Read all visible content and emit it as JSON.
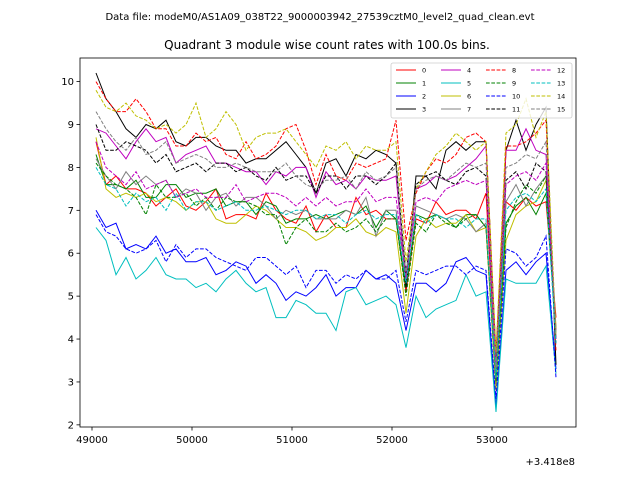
{
  "suptitle": "Data file: modeM0/AS1A09_038T22_9000003942_27539cztM0_level2_quad_clean.evt",
  "chart_data": {
    "type": "line",
    "title": "Quadrant 3 module wise count rates with 100.0s bins.",
    "xlabel": "",
    "ylabel": "",
    "x_offset_label": "+3.418e8",
    "xlim": [
      48880,
      53840
    ],
    "ylim": [
      1.95,
      10.55
    ],
    "xticks": [
      49000,
      50000,
      51000,
      52000,
      53000
    ],
    "xtick_labels": [
      "49000",
      "50000",
      "51000",
      "52000",
      "53000"
    ],
    "yticks": [
      2,
      3,
      4,
      5,
      6,
      7,
      8,
      9,
      10
    ],
    "ytick_labels": [
      "2",
      "3",
      "4",
      "5",
      "6",
      "7",
      "8",
      "9",
      "10"
    ],
    "grid": false,
    "legend_position": "top-right",
    "x": [
      49040,
      49140,
      49240,
      49340,
      49440,
      49540,
      49640,
      49740,
      49840,
      49940,
      50040,
      50140,
      50240,
      50340,
      50440,
      50540,
      50640,
      50740,
      50840,
      50940,
      51040,
      51140,
      51240,
      51340,
      51440,
      51540,
      51640,
      51740,
      51840,
      51940,
      52040,
      52140,
      52240,
      52340,
      52440,
      52540,
      52640,
      52740,
      52840,
      52940,
      53040,
      53140,
      53240,
      53340,
      53440,
      53540,
      53640
    ],
    "series": [
      {
        "name": "0",
        "color": "#ff0000",
        "dash": false,
        "values": [
          8.6,
          7.6,
          7.8,
          7.5,
          7.5,
          7.4,
          7.1,
          7.3,
          7.5,
          7.1,
          7.0,
          7.2,
          7.5,
          6.8,
          6.9,
          6.9,
          6.8,
          7.4,
          7.0,
          6.8,
          6.7,
          7.1,
          6.5,
          6.9,
          6.6,
          6.6,
          7.3,
          6.9,
          7.0,
          6.8,
          6.8,
          5.1,
          6.8,
          6.7,
          7.2,
          6.9,
          7.0,
          7.0,
          6.8,
          7.4,
          3.2,
          7.2,
          7.0,
          7.3,
          7.1,
          7.2,
          4.5
        ]
      },
      {
        "name": "1",
        "color": "#008000",
        "dash": false,
        "values": [
          8.3,
          7.6,
          7.6,
          7.5,
          7.7,
          7.3,
          7.3,
          7.6,
          7.6,
          7.3,
          7.4,
          7.4,
          7.5,
          7.1,
          7.2,
          7.2,
          6.9,
          7.2,
          7.1,
          6.7,
          6.8,
          6.8,
          6.9,
          6.8,
          6.9,
          7.0,
          6.9,
          7.1,
          6.6,
          7.0,
          6.8,
          5.2,
          6.9,
          6.8,
          6.9,
          6.8,
          6.6,
          6.9,
          6.9,
          6.6,
          2.9,
          6.7,
          7.1,
          7.3,
          6.9,
          7.4,
          4.2
        ]
      },
      {
        "name": "2",
        "color": "#0000ff",
        "dash": false,
        "values": [
          7.0,
          6.6,
          6.7,
          6.1,
          6.2,
          6.1,
          6.4,
          6.0,
          6.1,
          5.8,
          5.8,
          5.9,
          5.5,
          5.6,
          5.8,
          5.7,
          5.3,
          5.5,
          5.3,
          4.9,
          5.1,
          5.0,
          5.2,
          5.5,
          5.0,
          5.2,
          5.2,
          5.6,
          5.4,
          5.5,
          5.3,
          4.2,
          5.3,
          5.3,
          5.1,
          5.3,
          5.8,
          5.9,
          5.6,
          5.5,
          2.4,
          5.6,
          5.8,
          5.5,
          5.8,
          6.0,
          3.3
        ]
      },
      {
        "name": "3",
        "color": "#000000",
        "dash": false,
        "values": [
          10.2,
          9.6,
          9.3,
          8.9,
          8.7,
          9.0,
          8.9,
          9.1,
          8.6,
          8.5,
          8.7,
          8.7,
          8.5,
          8.4,
          8.4,
          8.1,
          8.2,
          8.2,
          8.4,
          8.6,
          8.3,
          8.0,
          7.4,
          8.1,
          8.2,
          7.8,
          8.3,
          8.2,
          8.4,
          8.3,
          8.1,
          5.2,
          7.8,
          7.8,
          7.5,
          8.4,
          8.6,
          8.4,
          8.6,
          8.6,
          3.5,
          8.4,
          9.1,
          8.4,
          9.0,
          9.4,
          3.4
        ]
      },
      {
        "name": "4",
        "color": "#bf00bf",
        "dash": false,
        "values": [
          8.9,
          8.8,
          8.5,
          8.2,
          8.6,
          8.9,
          8.6,
          8.7,
          8.1,
          8.3,
          8.4,
          8.5,
          8.1,
          8.1,
          8.0,
          7.9,
          7.9,
          7.6,
          7.9,
          7.8,
          8.0,
          8.0,
          7.3,
          7.9,
          7.6,
          7.7,
          7.5,
          7.8,
          7.7,
          7.7,
          7.8,
          5.4,
          7.5,
          7.6,
          7.8,
          7.7,
          7.8,
          8.0,
          8.2,
          8.5,
          3.6,
          8.4,
          8.4,
          8.9,
          8.4,
          8.3,
          4.2
        ]
      },
      {
        "name": "5",
        "color": "#00bfbf",
        "dash": false,
        "values": [
          6.6,
          6.3,
          5.5,
          5.9,
          5.4,
          5.6,
          5.9,
          5.5,
          5.4,
          5.4,
          5.2,
          5.3,
          5.1,
          5.4,
          5.6,
          5.3,
          5.1,
          5.2,
          4.5,
          4.5,
          4.9,
          4.8,
          4.6,
          4.6,
          4.2,
          5.1,
          5.2,
          4.8,
          4.9,
          5.0,
          4.8,
          3.8,
          5.0,
          4.5,
          4.7,
          4.8,
          4.9,
          5.5,
          5.0,
          5.1,
          2.3,
          5.4,
          5.3,
          5.3,
          5.3,
          5.7,
          3.2
        ]
      },
      {
        "name": "6",
        "color": "#bfbf00",
        "dash": false,
        "values": [
          8.7,
          7.5,
          7.3,
          7.4,
          7.3,
          7.4,
          7.2,
          7.3,
          7.2,
          7.0,
          7.2,
          7.2,
          6.8,
          6.7,
          6.7,
          6.9,
          7.1,
          7.0,
          6.8,
          6.6,
          6.6,
          6.5,
          6.3,
          6.4,
          6.6,
          6.6,
          6.8,
          6.5,
          6.4,
          6.6,
          6.5,
          4.6,
          6.4,
          6.8,
          6.6,
          6.7,
          6.7,
          6.9,
          6.5,
          6.6,
          2.8,
          6.3,
          6.9,
          7.1,
          7.2,
          7.7,
          4.3
        ]
      },
      {
        "name": "7",
        "color": "#808080",
        "dash": false,
        "values": [
          8.2,
          7.8,
          7.5,
          7.9,
          7.6,
          7.8,
          7.6,
          7.7,
          7.3,
          7.5,
          7.4,
          7.0,
          7.3,
          7.4,
          7.1,
          7.3,
          7.3,
          7.1,
          6.8,
          7.0,
          6.9,
          7.0,
          6.8,
          6.8,
          6.8,
          7.0,
          6.9,
          7.3,
          6.4,
          7.0,
          7.0,
          5.5,
          7.1,
          7.0,
          6.9,
          6.8,
          6.9,
          6.8,
          6.5,
          6.7,
          3.0,
          7.2,
          7.6,
          7.1,
          7.5,
          7.8,
          4.2
        ]
      },
      {
        "name": "8",
        "color": "#ff0000",
        "dash": true,
        "values": [
          10.0,
          9.6,
          9.3,
          9.3,
          9.6,
          9.3,
          8.9,
          8.9,
          8.5,
          8.5,
          8.8,
          8.6,
          8.7,
          8.3,
          8.2,
          8.6,
          8.2,
          8.3,
          8.5,
          8.9,
          9.0,
          8.4,
          7.6,
          8.3,
          7.8,
          7.7,
          8.1,
          8.0,
          8.1,
          8.2,
          9.1,
          6.3,
          7.4,
          7.9,
          8.2,
          8.1,
          8.3,
          8.7,
          8.8,
          8.6,
          3.6,
          8.5,
          8.5,
          8.6,
          8.8,
          9.1,
          3.7
        ]
      },
      {
        "name": "9",
        "color": "#008000",
        "dash": true,
        "values": [
          8.1,
          7.8,
          7.6,
          7.5,
          7.3,
          6.9,
          7.6,
          7.3,
          7.3,
          7.4,
          7.1,
          7.3,
          7.0,
          7.3,
          7.2,
          7.2,
          7.1,
          6.9,
          6.9,
          6.2,
          6.6,
          6.8,
          6.5,
          6.5,
          6.7,
          6.5,
          6.6,
          6.8,
          6.5,
          6.8,
          6.8,
          5.0,
          6.7,
          6.5,
          6.9,
          6.7,
          6.6,
          6.8,
          6.9,
          6.6,
          3.0,
          6.6,
          7.2,
          7.6,
          7.4,
          7.8,
          4.0
        ]
      },
      {
        "name": "10",
        "color": "#0000ff",
        "dash": true,
        "values": [
          6.9,
          6.5,
          6.4,
          6.1,
          6.0,
          6.1,
          6.3,
          5.8,
          6.2,
          5.9,
          6.1,
          6.1,
          5.9,
          5.8,
          5.7,
          5.6,
          5.9,
          5.9,
          5.7,
          5.5,
          5.7,
          5.2,
          5.6,
          5.6,
          5.3,
          5.5,
          5.4,
          5.6,
          5.4,
          5.4,
          5.6,
          4.4,
          5.6,
          5.5,
          5.6,
          5.7,
          5.7,
          5.5,
          5.7,
          5.6,
          2.6,
          6.1,
          6.0,
          5.7,
          5.9,
          6.4,
          3.1
        ]
      },
      {
        "name": "11",
        "color": "#000000",
        "dash": true,
        "values": [
          9.0,
          8.4,
          8.4,
          8.6,
          8.5,
          8.4,
          8.1,
          8.3,
          7.9,
          8.0,
          8.1,
          7.9,
          8.1,
          8.1,
          7.9,
          8.0,
          7.8,
          7.7,
          8.0,
          7.7,
          7.8,
          7.8,
          7.4,
          7.8,
          7.8,
          7.5,
          7.8,
          7.8,
          7.6,
          7.8,
          8.1,
          5.5,
          7.6,
          7.8,
          7.9,
          7.7,
          7.6,
          7.9,
          8.0,
          7.8,
          3.4,
          7.7,
          7.9,
          7.5,
          8.1,
          7.9,
          3.9
        ]
      },
      {
        "name": "12",
        "color": "#bf00bf",
        "dash": true,
        "values": [
          8.6,
          8.0,
          7.8,
          7.6,
          7.9,
          7.5,
          7.6,
          7.7,
          7.3,
          7.4,
          7.5,
          7.3,
          7.3,
          7.3,
          7.6,
          7.2,
          7.3,
          7.4,
          7.4,
          7.3,
          7.1,
          7.3,
          7.1,
          7.3,
          7.1,
          7.2,
          7.2,
          7.5,
          7.2,
          7.3,
          7.3,
          5.4,
          7.2,
          7.3,
          7.2,
          7.5,
          7.6,
          7.7,
          7.6,
          7.7,
          3.3,
          7.6,
          7.8,
          7.9,
          7.7,
          8.1,
          4.0
        ]
      },
      {
        "name": "13",
        "color": "#00bfbf",
        "dash": true,
        "values": [
          8.0,
          7.6,
          7.5,
          7.1,
          7.4,
          7.2,
          7.3,
          7.0,
          7.4,
          7.0,
          7.2,
          7.2,
          7.0,
          7.1,
          7.2,
          7.0,
          7.0,
          7.1,
          7.0,
          6.9,
          7.0,
          7.0,
          6.8,
          6.9,
          6.9,
          6.7,
          6.9,
          7.0,
          6.8,
          6.9,
          6.9,
          5.3,
          6.9,
          6.7,
          6.9,
          6.8,
          6.8,
          6.6,
          6.8,
          6.8,
          3.1,
          7.0,
          7.3,
          7.4,
          7.2,
          7.5,
          3.9
        ]
      },
      {
        "name": "14",
        "color": "#bfbf00",
        "dash": true,
        "values": [
          9.8,
          9.4,
          9.3,
          9.5,
          9.2,
          9.1,
          8.9,
          9.0,
          8.8,
          9.0,
          9.5,
          8.7,
          8.9,
          9.3,
          9.0,
          8.4,
          8.7,
          8.8,
          8.8,
          8.9,
          8.6,
          8.3,
          8.0,
          8.5,
          8.4,
          8.6,
          8.2,
          8.5,
          8.4,
          8.4,
          8.6,
          5.8,
          7.5,
          7.9,
          8.3,
          8.5,
          8.8,
          8.6,
          8.4,
          8.6,
          3.7,
          8.8,
          9.0,
          9.6,
          8.7,
          9.3,
          4.1
        ]
      },
      {
        "name": "15",
        "color": "#808080",
        "dash": true,
        "values": [
          9.3,
          8.9,
          8.6,
          8.4,
          8.7,
          8.3,
          8.4,
          8.6,
          8.1,
          8.2,
          8.3,
          8.2,
          8.0,
          8.0,
          8.1,
          8.0,
          7.9,
          7.9,
          7.9,
          8.1,
          7.8,
          7.6,
          7.5,
          7.7,
          7.7,
          7.8,
          7.5,
          7.9,
          7.7,
          7.8,
          8.0,
          5.5,
          7.5,
          7.7,
          7.8,
          7.7,
          7.9,
          8.1,
          8.0,
          8.1,
          3.3,
          8.0,
          8.1,
          8.3,
          8.2,
          8.6,
          4.1
        ]
      }
    ]
  }
}
